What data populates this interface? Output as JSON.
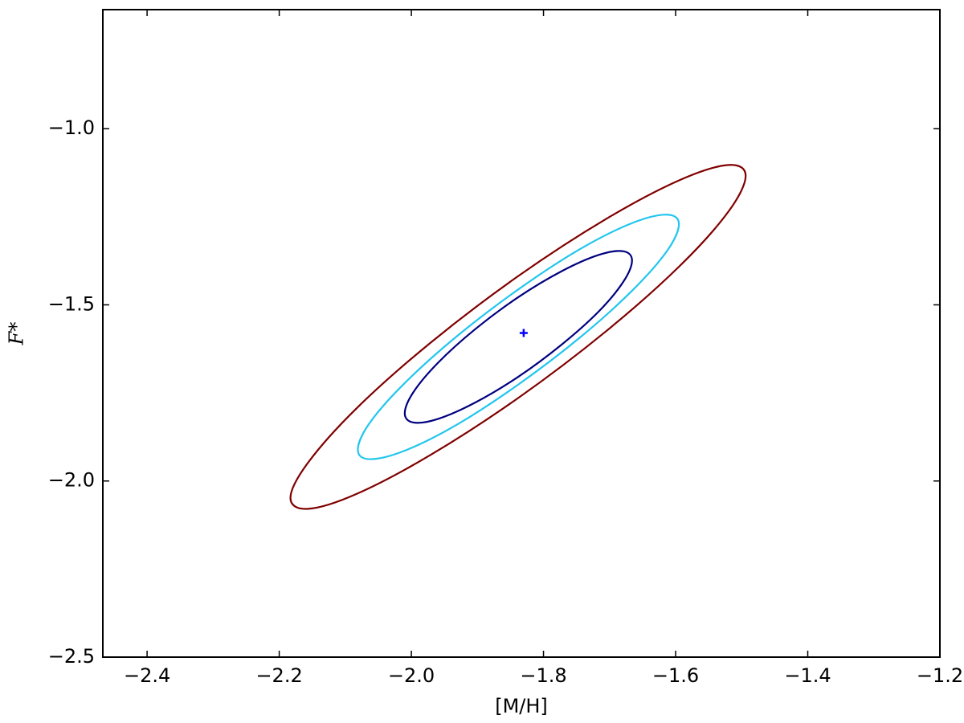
{
  "chart_data": {
    "type": "contour",
    "xlabel": "[M/H]",
    "ylabel": "F*",
    "xlim": [
      -2.467,
      -1.2
    ],
    "ylim": [
      -2.5,
      -0.662
    ],
    "xticks": [
      {
        "value": -2.4,
        "label": "−2.4"
      },
      {
        "value": -2.2,
        "label": "−2.2"
      },
      {
        "value": -2.0,
        "label": "−2.0"
      },
      {
        "value": -1.8,
        "label": "−1.8"
      },
      {
        "value": -1.6,
        "label": "−1.6"
      },
      {
        "value": -1.4,
        "label": "−1.4"
      },
      {
        "value": -1.2,
        "label": "−1.2"
      }
    ],
    "yticks": [
      {
        "value": -2.5,
        "label": "−2.5"
      },
      {
        "value": -2.0,
        "label": "−2.0"
      },
      {
        "value": -1.5,
        "label": "−1.5"
      },
      {
        "value": -1.0,
        "label": "−1.0"
      }
    ],
    "series": [
      {
        "color": "#800000",
        "x": [
          -1.494,
          -1.52,
          -1.594,
          -1.706,
          -1.838,
          -1.97,
          -2.082,
          -2.156,
          -2.183,
          -2.156,
          -2.082,
          -1.97,
          -1.838,
          -1.706,
          -1.594,
          -1.52
        ],
        "y": [
          -1.134,
          -1.103,
          -1.146,
          -1.257,
          -1.418,
          -1.606,
          -1.792,
          -1.947,
          -2.048,
          -2.079,
          -2.036,
          -1.925,
          -1.764,
          -1.576,
          -1.39,
          -1.235
        ]
      },
      {
        "color": "#22c6ee",
        "x": [
          -1.595,
          -1.613,
          -1.666,
          -1.745,
          -1.838,
          -1.931,
          -2.01,
          -2.063,
          -2.081,
          -2.063,
          -2.01,
          -1.931,
          -1.838,
          -1.745,
          -1.666,
          -1.613
        ],
        "y": [
          -1.271,
          -1.244,
          -1.268,
          -1.342,
          -1.456,
          -1.589,
          -1.722,
          -1.835,
          -1.911,
          -1.938,
          -1.914,
          -1.84,
          -1.726,
          -1.593,
          -1.46,
          -1.347
        ]
      },
      {
        "color": "#000080",
        "x": [
          -1.666,
          -1.679,
          -1.716,
          -1.772,
          -1.838,
          -1.904,
          -1.96,
          -1.997,
          -2.01,
          -1.997,
          -1.96,
          -1.904,
          -1.838,
          -1.772,
          -1.716,
          -1.679
        ],
        "y": [
          -1.374,
          -1.348,
          -1.358,
          -1.404,
          -1.478,
          -1.57,
          -1.665,
          -1.748,
          -1.808,
          -1.834,
          -1.824,
          -1.778,
          -1.704,
          -1.612,
          -1.518,
          -1.434
        ]
      }
    ],
    "marker": {
      "x": -1.83,
      "y": -1.58,
      "color": "#0000ff"
    }
  }
}
